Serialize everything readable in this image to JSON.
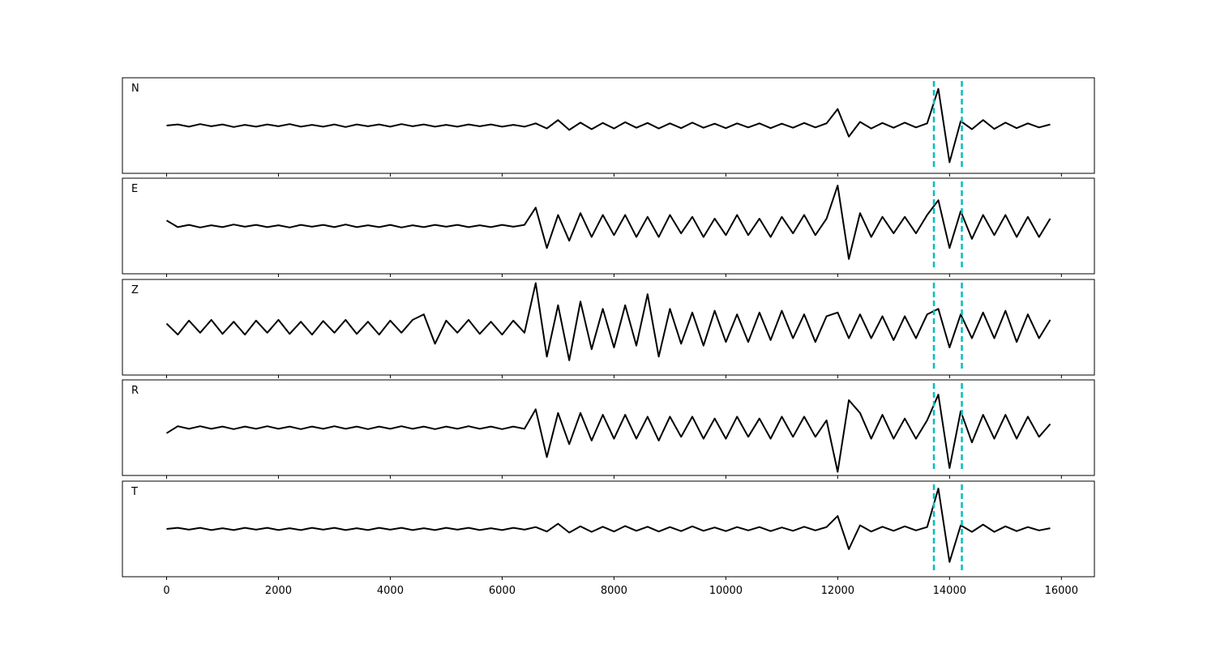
{
  "chart_data": {
    "type": "line",
    "x": [
      0,
      200,
      400,
      600,
      800,
      1000,
      1200,
      1400,
      1600,
      1800,
      2000,
      2200,
      2400,
      2600,
      2800,
      3000,
      3200,
      3400,
      3600,
      3800,
      4000,
      4200,
      4400,
      4600,
      4800,
      5000,
      5200,
      5400,
      5600,
      5800,
      6000,
      6200,
      6400,
      6600,
      6800,
      7000,
      7200,
      7400,
      7600,
      7800,
      8000,
      8200,
      8400,
      8600,
      8800,
      9000,
      9200,
      9400,
      9600,
      9800,
      10000,
      10200,
      10400,
      10600,
      10800,
      11000,
      11200,
      11400,
      11600,
      11800,
      12000,
      12200,
      12400,
      12600,
      12800,
      13000,
      13200,
      13400,
      13600,
      13800,
      14000,
      14200,
      14400,
      14600,
      14800,
      15000,
      15200,
      15400,
      15600,
      15800
    ],
    "series": [
      {
        "name": "N",
        "color": "#000000",
        "values": [
          0,
          0.03,
          -0.03,
          0.04,
          -0.02,
          0.03,
          -0.04,
          0.02,
          -0.03,
          0.03,
          -0.02,
          0.04,
          -0.03,
          0.02,
          -0.03,
          0.03,
          -0.04,
          0.03,
          -0.02,
          0.03,
          -0.03,
          0.04,
          -0.02,
          0.03,
          -0.03,
          0.02,
          -0.03,
          0.03,
          -0.02,
          0.03,
          -0.03,
          0.02,
          -0.03,
          0.06,
          -0.08,
          0.15,
          -0.12,
          0.08,
          -0.1,
          0.07,
          -0.08,
          0.09,
          -0.06,
          0.07,
          -0.08,
          0.06,
          -0.07,
          0.08,
          -0.06,
          0.05,
          -0.07,
          0.06,
          -0.05,
          0.06,
          -0.07,
          0.05,
          -0.06,
          0.07,
          -0.05,
          0.06,
          0.45,
          -0.3,
          0.1,
          -0.08,
          0.07,
          -0.06,
          0.08,
          -0.05,
          0.06,
          1.0,
          -1.0,
          0.12,
          -0.1,
          0.15,
          -0.09,
          0.08,
          -0.07,
          0.06,
          -0.05,
          0.03
        ]
      },
      {
        "name": "E",
        "color": "#000000",
        "values": [
          0.15,
          -0.03,
          0.03,
          -0.04,
          0.02,
          -0.03,
          0.04,
          -0.02,
          0.03,
          -0.03,
          0.02,
          -0.04,
          0.03,
          -0.02,
          0.03,
          -0.03,
          0.04,
          -0.03,
          0.02,
          -0.03,
          0.03,
          -0.04,
          0.02,
          -0.03,
          0.03,
          -0.02,
          0.03,
          -0.03,
          0.02,
          -0.03,
          0.03,
          -0.02,
          0.03,
          0.5,
          -0.6,
          0.3,
          -0.4,
          0.35,
          -0.3,
          0.3,
          -0.25,
          0.3,
          -0.3,
          0.25,
          -0.3,
          0.3,
          -0.2,
          0.25,
          -0.3,
          0.2,
          -0.25,
          0.3,
          -0.25,
          0.2,
          -0.3,
          0.25,
          -0.2,
          0.3,
          -0.25,
          0.2,
          1.1,
          -0.9,
          0.35,
          -0.3,
          0.25,
          -0.2,
          0.25,
          -0.2,
          0.3,
          0.7,
          -0.6,
          0.4,
          -0.35,
          0.3,
          -0.25,
          0.3,
          -0.3,
          0.25,
          -0.3,
          0.2
        ]
      },
      {
        "name": "Z",
        "color": "#000000",
        "values": [
          0.1,
          -0.2,
          0.18,
          -0.15,
          0.2,
          -0.18,
          0.15,
          -0.2,
          0.18,
          -0.15,
          0.2,
          -0.18,
          0.15,
          -0.2,
          0.17,
          -0.15,
          0.2,
          -0.18,
          0.15,
          -0.2,
          0.18,
          -0.15,
          0.2,
          0.35,
          -0.45,
          0.18,
          -0.15,
          0.2,
          -0.18,
          0.15,
          -0.2,
          0.18,
          -0.15,
          1.2,
          -0.8,
          0.6,
          -0.9,
          0.7,
          -0.6,
          0.5,
          -0.55,
          0.6,
          -0.5,
          0.9,
          -0.8,
          0.5,
          -0.45,
          0.4,
          -0.5,
          0.45,
          -0.4,
          0.35,
          -0.4,
          0.4,
          -0.35,
          0.45,
          -0.3,
          0.35,
          -0.4,
          0.3,
          0.4,
          -0.3,
          0.35,
          -0.3,
          0.3,
          -0.35,
          0.3,
          -0.3,
          0.35,
          0.5,
          -0.55,
          0.35,
          -0.3,
          0.4,
          -0.3,
          0.45,
          -0.4,
          0.35,
          -0.3,
          0.2
        ]
      },
      {
        "name": "R",
        "color": "#000000",
        "values": [
          -0.15,
          0.04,
          -0.03,
          0.04,
          -0.03,
          0.03,
          -0.04,
          0.03,
          -0.03,
          0.04,
          -0.03,
          0.03,
          -0.04,
          0.03,
          -0.03,
          0.04,
          -0.03,
          0.03,
          -0.04,
          0.03,
          -0.03,
          0.04,
          -0.03,
          0.03,
          -0.04,
          0.03,
          -0.03,
          0.04,
          -0.03,
          0.03,
          -0.04,
          0.03,
          -0.03,
          0.5,
          -0.8,
          0.4,
          -0.45,
          0.4,
          -0.35,
          0.35,
          -0.3,
          0.35,
          -0.3,
          0.3,
          -0.35,
          0.3,
          -0.25,
          0.3,
          -0.3,
          0.25,
          -0.3,
          0.3,
          -0.25,
          0.25,
          -0.3,
          0.3,
          -0.25,
          0.3,
          -0.25,
          0.2,
          -1.2,
          0.75,
          0.4,
          -0.3,
          0.35,
          -0.3,
          0.25,
          -0.3,
          0.2,
          0.9,
          -1.1,
          0.45,
          -0.4,
          0.35,
          -0.3,
          0.35,
          -0.3,
          0.3,
          -0.25,
          0.1
        ]
      },
      {
        "name": "T",
        "color": "#000000",
        "values": [
          0,
          0.03,
          -0.02,
          0.03,
          -0.03,
          0.02,
          -0.03,
          0.03,
          -0.02,
          0.03,
          -0.03,
          0.02,
          -0.03,
          0.03,
          -0.02,
          0.03,
          -0.03,
          0.02,
          -0.03,
          0.03,
          -0.02,
          0.03,
          -0.03,
          0.02,
          -0.03,
          0.03,
          -0.02,
          0.03,
          -0.03,
          0.02,
          -0.03,
          0.03,
          -0.02,
          0.05,
          -0.07,
          0.14,
          -0.1,
          0.07,
          -0.08,
          0.06,
          -0.07,
          0.08,
          -0.05,
          0.06,
          -0.07,
          0.05,
          -0.06,
          0.07,
          -0.05,
          0.04,
          -0.06,
          0.05,
          -0.04,
          0.05,
          -0.06,
          0.04,
          -0.05,
          0.06,
          -0.04,
          0.05,
          0.35,
          -0.55,
          0.1,
          -0.07,
          0.06,
          -0.05,
          0.07,
          -0.04,
          0.05,
          1.1,
          -0.9,
          0.1,
          -0.08,
          0.12,
          -0.08,
          0.07,
          -0.06,
          0.05,
          -0.04,
          0.02
        ]
      }
    ],
    "xlim": [
      -790,
      16590
    ],
    "xticks": [
      0,
      2000,
      4000,
      6000,
      8000,
      10000,
      12000,
      14000,
      16000
    ],
    "ylim": [
      -1.3,
      1.3
    ],
    "vlines": [
      13720,
      14220
    ],
    "vline_color": "#00bfbf"
  }
}
